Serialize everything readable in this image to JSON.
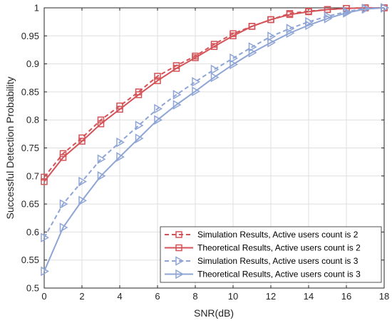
{
  "chart_data": {
    "type": "line",
    "title": "",
    "xlabel": "SNR(dB)",
    "ylabel": "Successful Detection Probability",
    "xlim": [
      0,
      18
    ],
    "ylim": [
      0.5,
      1
    ],
    "xticks": [
      0,
      2,
      4,
      6,
      8,
      10,
      12,
      14,
      16,
      18
    ],
    "yticks": [
      0.5,
      0.55,
      0.6,
      0.65,
      0.7,
      0.75,
      0.8,
      0.85,
      0.9,
      0.95,
      1
    ],
    "ytick_labels": [
      "0.5",
      "0.55",
      "0.6",
      "0.65",
      "0.7",
      "0.75",
      "0.8",
      "0.85",
      "0.9",
      "0.95",
      "1"
    ],
    "grid": true,
    "legend_position": "bottom-right",
    "x": [
      0,
      1,
      2,
      3,
      4,
      5,
      6,
      7,
      8,
      9,
      10,
      11,
      12,
      13,
      14,
      15,
      16,
      17,
      18
    ],
    "series": [
      {
        "name": "Simulation Results, Active users count is 2",
        "color": "#d45358",
        "line_style": "dashed",
        "marker": "square",
        "values": [
          0.698,
          0.74,
          0.768,
          0.8,
          0.825,
          0.85,
          0.878,
          0.897,
          0.914,
          0.935,
          0.954,
          0.967,
          0.979,
          0.99,
          0.994,
          0.997,
          0.999,
          1.0,
          1.0
        ]
      },
      {
        "name": "Theoretical Results, Active users count is 2",
        "color": "#d45358",
        "line_style": "solid",
        "marker": "square",
        "values": [
          0.69,
          0.733,
          0.762,
          0.793,
          0.819,
          0.845,
          0.87,
          0.892,
          0.911,
          0.931,
          0.95,
          0.967,
          0.979,
          0.988,
          0.993,
          0.997,
          0.999,
          1.0,
          1.0
        ]
      },
      {
        "name": "Simulation Results, Active users count is 3",
        "color": "#8ea5d6",
        "line_style": "dashed",
        "marker": "triangle-right",
        "values": [
          0.59,
          0.65,
          0.69,
          0.73,
          0.76,
          0.79,
          0.82,
          0.845,
          0.868,
          0.89,
          0.91,
          0.93,
          0.949,
          0.963,
          0.975,
          0.985,
          0.993,
          0.999,
          1.0
        ]
      },
      {
        "name": "Theoretical Results, Active users count is 3",
        "color": "#8ea5d6",
        "line_style": "solid",
        "marker": "triangle-right",
        "values": [
          0.53,
          0.608,
          0.656,
          0.7,
          0.734,
          0.767,
          0.8,
          0.827,
          0.851,
          0.876,
          0.899,
          0.92,
          0.938,
          0.955,
          0.969,
          0.981,
          0.991,
          0.998,
          1.0
        ]
      }
    ]
  }
}
